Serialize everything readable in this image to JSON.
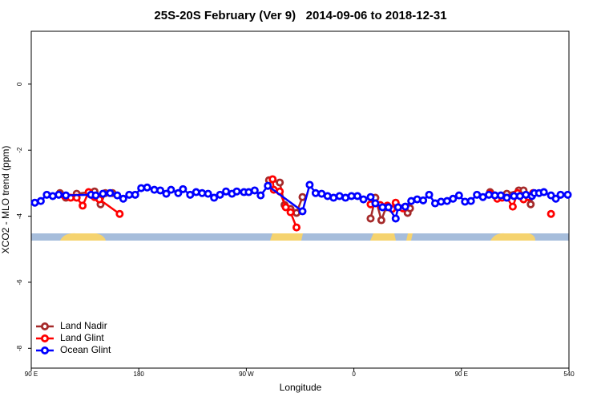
{
  "chart_data": {
    "type": "line",
    "title": "25S-20S February (Ver 9)   2014-09-06 to 2018-12-31",
    "x_label": "Longitude",
    "y_label": "XCO2 - MLO trend (ppm)",
    "xlim": [
      90,
      540
    ],
    "ylim": [
      -8.6,
      1.6
    ],
    "xticks": [
      {
        "value": 90,
        "label": "90 E"
      },
      180,
      {
        "value": 270,
        "label": "90 W"
      },
      {
        "value": 360,
        "label": "0"
      },
      {
        "value": 450,
        "label": "90 E"
      },
      540
    ],
    "yticks": [
      0,
      -2,
      -4,
      -6,
      -8
    ],
    "legend": "bottomleft",
    "series": [
      {
        "name": "Land Nadir",
        "color": "#a52a2a",
        "x": [
          114,
          119,
          128,
          143,
          148,
          152,
          158,
          null,
          289,
          298,
          302,
          307,
          312,
          317,
          null,
          374,
          378,
          383,
          387,
          null,
          405,
          407,
          null,
          474,
          478,
          488,
          498,
          502,
          508,
          510
        ],
        "values": [
          -3.3,
          -3.44,
          -3.32,
          -3.25,
          -3.64,
          -3.3,
          -3.3,
          null,
          -2.91,
          -2.98,
          -3.66,
          -3.78,
          -3.9,
          -3.42,
          null,
          -4.07,
          -3.44,
          -4.12,
          -3.73,
          null,
          -3.9,
          -3.76,
          null,
          -3.27,
          -3.37,
          -3.32,
          -3.22,
          -3.22,
          -3.64,
          -3.3
        ]
      },
      {
        "name": "Land Glint",
        "color": "#ff0000",
        "x": [
          118,
          123,
          128,
          133,
          138,
          143,
          147,
          164,
          null,
          292,
          293,
          298,
          303,
          307,
          312,
          null,
          374,
          382,
          388,
          392,
          395,
          401,
          null,
          474,
          480,
          484,
          488,
          493,
          497,
          502,
          506,
          510,
          null,
          525
        ],
        "values": [
          -3.39,
          -3.44,
          -3.44,
          -3.68,
          -3.27,
          -3.42,
          -3.49,
          -3.93,
          null,
          -2.88,
          -3.2,
          -3.25,
          -3.73,
          -3.88,
          -4.34,
          null,
          -3.64,
          -3.66,
          -3.68,
          -3.78,
          -3.59,
          -3.76,
          null,
          -3.32,
          -3.47,
          -3.44,
          -3.44,
          -3.71,
          -3.3,
          -3.49,
          -3.42,
          -3.3,
          null,
          -3.93
        ]
      },
      {
        "name": "Ocean Glint",
        "color": "#0000ff",
        "x": [
          93,
          98,
          103,
          108,
          113,
          119,
          140,
          144,
          150,
          156,
          162,
          167,
          172,
          177,
          182,
          187,
          193,
          198,
          203,
          207,
          213,
          217,
          223,
          228,
          233,
          238,
          243,
          248,
          253,
          258,
          262,
          268,
          272,
          277,
          282,
          288,
          317,
          323,
          328,
          333,
          338,
          343,
          348,
          353,
          358,
          363,
          368,
          374,
          378,
          384,
          389,
          395,
          397,
          403,
          408,
          413,
          418,
          423,
          428,
          433,
          438,
          443,
          448,
          453,
          458,
          463,
          468,
          473,
          478,
          483,
          488,
          494,
          499,
          504,
          509,
          511,
          515,
          519,
          525,
          529,
          533,
          539
        ],
        "values": [
          -3.59,
          -3.54,
          -3.35,
          -3.39,
          -3.35,
          -3.37,
          -3.35,
          -3.37,
          -3.32,
          -3.3,
          -3.37,
          -3.47,
          -3.35,
          -3.35,
          -3.15,
          -3.13,
          -3.2,
          -3.22,
          -3.32,
          -3.2,
          -3.3,
          -3.18,
          -3.35,
          -3.27,
          -3.3,
          -3.32,
          -3.44,
          -3.35,
          -3.25,
          -3.32,
          -3.25,
          -3.27,
          -3.27,
          -3.22,
          -3.37,
          -3.08,
          -3.85,
          -3.05,
          -3.3,
          -3.32,
          -3.39,
          -3.44,
          -3.39,
          -3.44,
          -3.39,
          -3.39,
          -3.49,
          -3.42,
          -3.61,
          -3.73,
          -3.73,
          -4.07,
          -3.73,
          -3.71,
          -3.54,
          -3.49,
          -3.52,
          -3.35,
          -3.61,
          -3.56,
          -3.54,
          -3.47,
          -3.37,
          -3.56,
          -3.54,
          -3.35,
          -3.42,
          -3.35,
          -3.37,
          -3.37,
          -3.44,
          -3.39,
          -3.39,
          -3.35,
          -3.39,
          -3.3,
          -3.3,
          -3.27,
          -3.37,
          -3.47,
          -3.35,
          -3.35
        ]
      }
    ]
  }
}
